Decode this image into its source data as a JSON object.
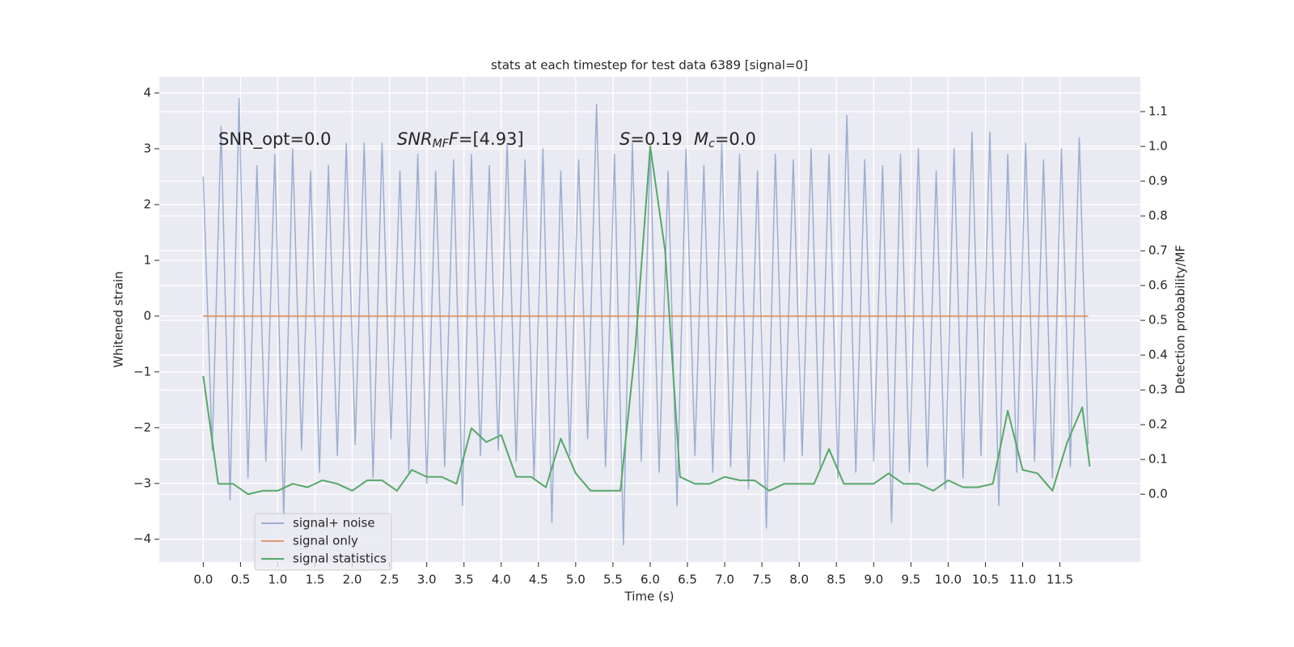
{
  "chart_data": {
    "type": "line",
    "title": "stats at each timestep for test data 6389 [signal=0]",
    "xlabel": "Time (s)",
    "ylabel": "Whitened strain",
    "y2label": "Detection probability/MF",
    "xlim": [
      -0.59,
      12.58
    ],
    "ylim": [
      -4.41,
      4.29
    ],
    "y2lim": [
      -0.195,
      1.2
    ],
    "xticks": [
      {
        "value": 0,
        "label": "0.0"
      },
      {
        "value": 0.5,
        "label": "0.5"
      },
      {
        "value": 1,
        "label": "1.0"
      },
      {
        "value": 1.5,
        "label": "1.5"
      },
      {
        "value": 2,
        "label": "2.0"
      },
      {
        "value": 2.5,
        "label": "2.5"
      },
      {
        "value": 3,
        "label": "3.0"
      },
      {
        "value": 3.5,
        "label": "3.5"
      },
      {
        "value": 4,
        "label": "4.0"
      },
      {
        "value": 4.5,
        "label": "4.5"
      },
      {
        "value": 5,
        "label": "5.0"
      },
      {
        "value": 5.5,
        "label": "5.5"
      },
      {
        "value": 6,
        "label": "6.0"
      },
      {
        "value": 6.5,
        "label": "6.5"
      },
      {
        "value": 7,
        "label": "7.0"
      },
      {
        "value": 7.5,
        "label": "7.5"
      },
      {
        "value": 8,
        "label": "8.0"
      },
      {
        "value": 8.5,
        "label": "8.5"
      },
      {
        "value": 9,
        "label": "9.0"
      },
      {
        "value": 9.5,
        "label": "9.5"
      },
      {
        "value": 10,
        "label": "10.0"
      },
      {
        "value": 10.5,
        "label": "10.5"
      },
      {
        "value": 11,
        "label": "11.0"
      },
      {
        "value": 11.5,
        "label": "11.5"
      }
    ],
    "yticks": [
      {
        "value": -4,
        "label": "−4"
      },
      {
        "value": -3,
        "label": "−3"
      },
      {
        "value": -2,
        "label": "−2"
      },
      {
        "value": -1,
        "label": "−1"
      },
      0,
      1,
      2,
      3,
      4
    ],
    "y2ticks": [
      {
        "value": 0,
        "label": "0.0"
      },
      {
        "value": 0.1,
        "label": "0.1"
      },
      {
        "value": 0.2,
        "label": "0.2"
      },
      {
        "value": 0.3,
        "label": "0.3"
      },
      {
        "value": 0.4,
        "label": "0.4"
      },
      {
        "value": 0.5,
        "label": "0.5"
      },
      {
        "value": 0.6,
        "label": "0.6"
      },
      {
        "value": 0.7,
        "label": "0.7"
      },
      {
        "value": 0.8,
        "label": "0.8"
      },
      {
        "value": 0.9,
        "label": "0.9"
      },
      {
        "value": 1.0,
        "label": "1.0"
      },
      {
        "value": 1.1,
        "label": "1.1"
      }
    ],
    "grid": true,
    "legend": "lower left",
    "annotations": [
      [
        {
          "text": "SNR_opt=0.0",
          "italic": false,
          "sub": false
        }
      ],
      [
        {
          "text": "SNR",
          "italic": true,
          "sub": false
        },
        {
          "text": "MF",
          "italic": true,
          "sub": true
        },
        {
          "text": "F",
          "italic": true,
          "sub": false
        },
        {
          "text": "=[4.93]",
          "italic": false,
          "sub": false
        }
      ],
      [
        {
          "text": "S",
          "italic": true,
          "sub": false
        },
        {
          "text": "=0.19",
          "italic": false,
          "sub": false
        }
      ],
      [
        {
          "text": "M",
          "italic": true,
          "sub": false
        },
        {
          "text": "c",
          "italic": true,
          "sub": true
        },
        {
          "text": "=0.0",
          "italic": false,
          "sub": false
        }
      ]
    ],
    "series": [
      {
        "name": "signal+ noise",
        "color": "#4c72b0",
        "opacity": 0.5,
        "x": [
          0,
          0.12,
          0.24,
          0.36,
          0.48,
          0.6,
          0.72,
          0.84,
          0.96,
          1.08,
          1.2,
          1.32,
          1.44,
          1.56,
          1.68,
          1.8,
          1.92,
          2.04,
          2.16,
          2.28,
          2.4,
          2.52,
          2.64,
          2.76,
          2.88,
          3,
          3.12,
          3.24,
          3.36,
          3.48,
          3.6,
          3.72,
          3.84,
          3.96,
          4.08,
          4.2,
          4.32,
          4.44,
          4.56,
          4.68,
          4.8,
          4.92,
          5.04,
          5.16,
          5.28,
          5.4,
          5.52,
          5.64,
          5.76,
          5.88,
          6,
          6.12,
          6.24,
          6.36,
          6.48,
          6.6,
          6.72,
          6.84,
          6.96,
          7.08,
          7.2,
          7.32,
          7.44,
          7.56,
          7.68,
          7.8,
          7.92,
          8.04,
          8.16,
          8.28,
          8.4,
          8.52,
          8.64,
          8.76,
          8.88,
          9,
          9.12,
          9.24,
          9.36,
          9.48,
          9.6,
          9.72,
          9.84,
          9.96,
          10.08,
          10.2,
          10.32,
          10.44,
          10.56,
          10.68,
          10.8,
          10.92,
          11.04,
          11.16,
          11.28,
          11.4,
          11.52,
          11.64,
          11.76,
          11.88
        ],
        "values": [
          2.5,
          -2.4,
          3.4,
          -3.3,
          3.9,
          -2.9,
          2.7,
          -2.6,
          2.9,
          -3.6,
          3.0,
          -2.4,
          2.6,
          -2.8,
          2.7,
          -2.5,
          3.1,
          -2.3,
          3.1,
          -2.9,
          3.1,
          -2.2,
          2.6,
          -2.8,
          2.9,
          -3.0,
          2.6,
          -2.7,
          2.8,
          -3.4,
          2.9,
          -2.5,
          2.7,
          -2.4,
          3.1,
          -2.6,
          2.8,
          -2.9,
          3.0,
          -3.7,
          2.6,
          -2.5,
          2.8,
          -2.2,
          3.8,
          -2.7,
          2.9,
          -4.1,
          3.1,
          -2.6,
          3.0,
          -2.8,
          2.6,
          -3.4,
          3.0,
          -2.5,
          2.7,
          -2.8,
          3.1,
          -2.7,
          2.9,
          -3.1,
          2.6,
          -3.8,
          2.9,
          -2.6,
          2.8,
          -2.5,
          3.0,
          -2.7,
          2.9,
          -2.9,
          3.6,
          -2.8,
          2.8,
          -2.6,
          2.7,
          -3.7,
          2.9,
          -2.8,
          3.0,
          -2.7,
          2.6,
          -3.1,
          3.0,
          -2.9,
          3.3,
          -2.5,
          3.3,
          -3.4,
          2.9,
          -2.8,
          3.1,
          -2.6,
          2.8,
          -2.9,
          3.0,
          -2.7,
          3.2,
          -2.3
        ]
      },
      {
        "name": "signal only",
        "color": "#dd8452",
        "opacity": 0.8,
        "x": [
          0,
          11.88
        ],
        "values": [
          0,
          0
        ]
      },
      {
        "name": "signal statistics",
        "color": "#55a868",
        "opacity": 1,
        "axis": "y2",
        "x": [
          0,
          0.2,
          0.4,
          0.6,
          0.8,
          1,
          1.2,
          1.4,
          1.6,
          1.8,
          2,
          2.2,
          2.4,
          2.6,
          2.8,
          3,
          3.2,
          3.4,
          3.6,
          3.8,
          4,
          4.2,
          4.4,
          4.6,
          4.8,
          5,
          5.2,
          5.4,
          5.6,
          5.8,
          6,
          6.2,
          6.4,
          6.6,
          6.8,
          7,
          7.2,
          7.4,
          7.6,
          7.8,
          8,
          8.2,
          8.4,
          8.6,
          8.8,
          9,
          9.2,
          9.4,
          9.6,
          9.8,
          10,
          10.2,
          10.4,
          10.6,
          10.8,
          11,
          11.2,
          11.4,
          11.6,
          11.8,
          11.9
        ],
        "values": [
          0.34,
          0.03,
          0.03,
          0.0,
          0.01,
          0.01,
          0.03,
          0.02,
          0.04,
          0.03,
          0.01,
          0.04,
          0.04,
          0.01,
          0.07,
          0.05,
          0.05,
          0.03,
          0.19,
          0.15,
          0.17,
          0.05,
          0.05,
          0.02,
          0.16,
          0.06,
          0.01,
          0.01,
          0.01,
          0.42,
          1.0,
          0.7,
          0.05,
          0.03,
          0.03,
          0.05,
          0.04,
          0.04,
          0.01,
          0.03,
          0.03,
          0.03,
          0.13,
          0.03,
          0.03,
          0.03,
          0.06,
          0.03,
          0.03,
          0.01,
          0.04,
          0.02,
          0.02,
          0.03,
          0.24,
          0.07,
          0.06,
          0.01,
          0.15,
          0.25,
          0.08
        ]
      }
    ]
  }
}
